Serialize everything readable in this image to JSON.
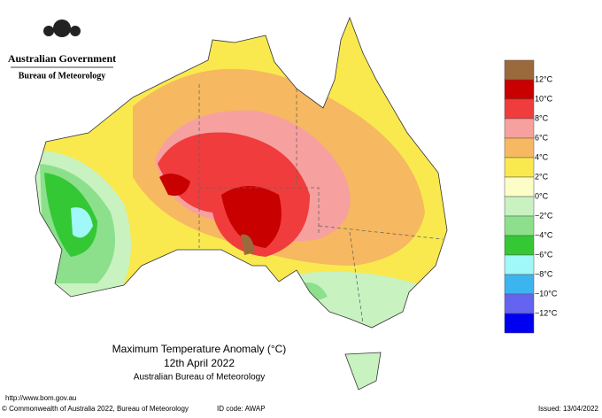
{
  "header": {
    "government": "Australian Government",
    "bureau": "Bureau of Meteorology"
  },
  "title": {
    "line1": "Maximum Temperature Anomaly (°C)",
    "line2": "12th April 2022",
    "line3": "Australian Bureau of Meteorology"
  },
  "legend": {
    "colors": [
      "#9b6a3c",
      "#c80000",
      "#f03c3c",
      "#f7a0a0",
      "#f6b860",
      "#f9e94e",
      "#fdfdc8",
      "#c8f2c0",
      "#8ce08c",
      "#34c834",
      "#a0f8f8",
      "#3cb4f0",
      "#6464f0",
      "#0000f0"
    ],
    "labels": [
      "12°C",
      "10°C",
      "8°C",
      "6°C",
      "4°C",
      "2°C",
      "0°C",
      "−2°C",
      "−4°C",
      "−6°C",
      "−8°C",
      "−10°C",
      "−12°C"
    ]
  },
  "footer": {
    "url": "http://www.bom.gov.au",
    "copyright": "© Commonwealth of Australia 2022, Bureau of Meteorology",
    "id": "ID code: AWAP",
    "issued": "Issued: 13/04/2022"
  }
}
